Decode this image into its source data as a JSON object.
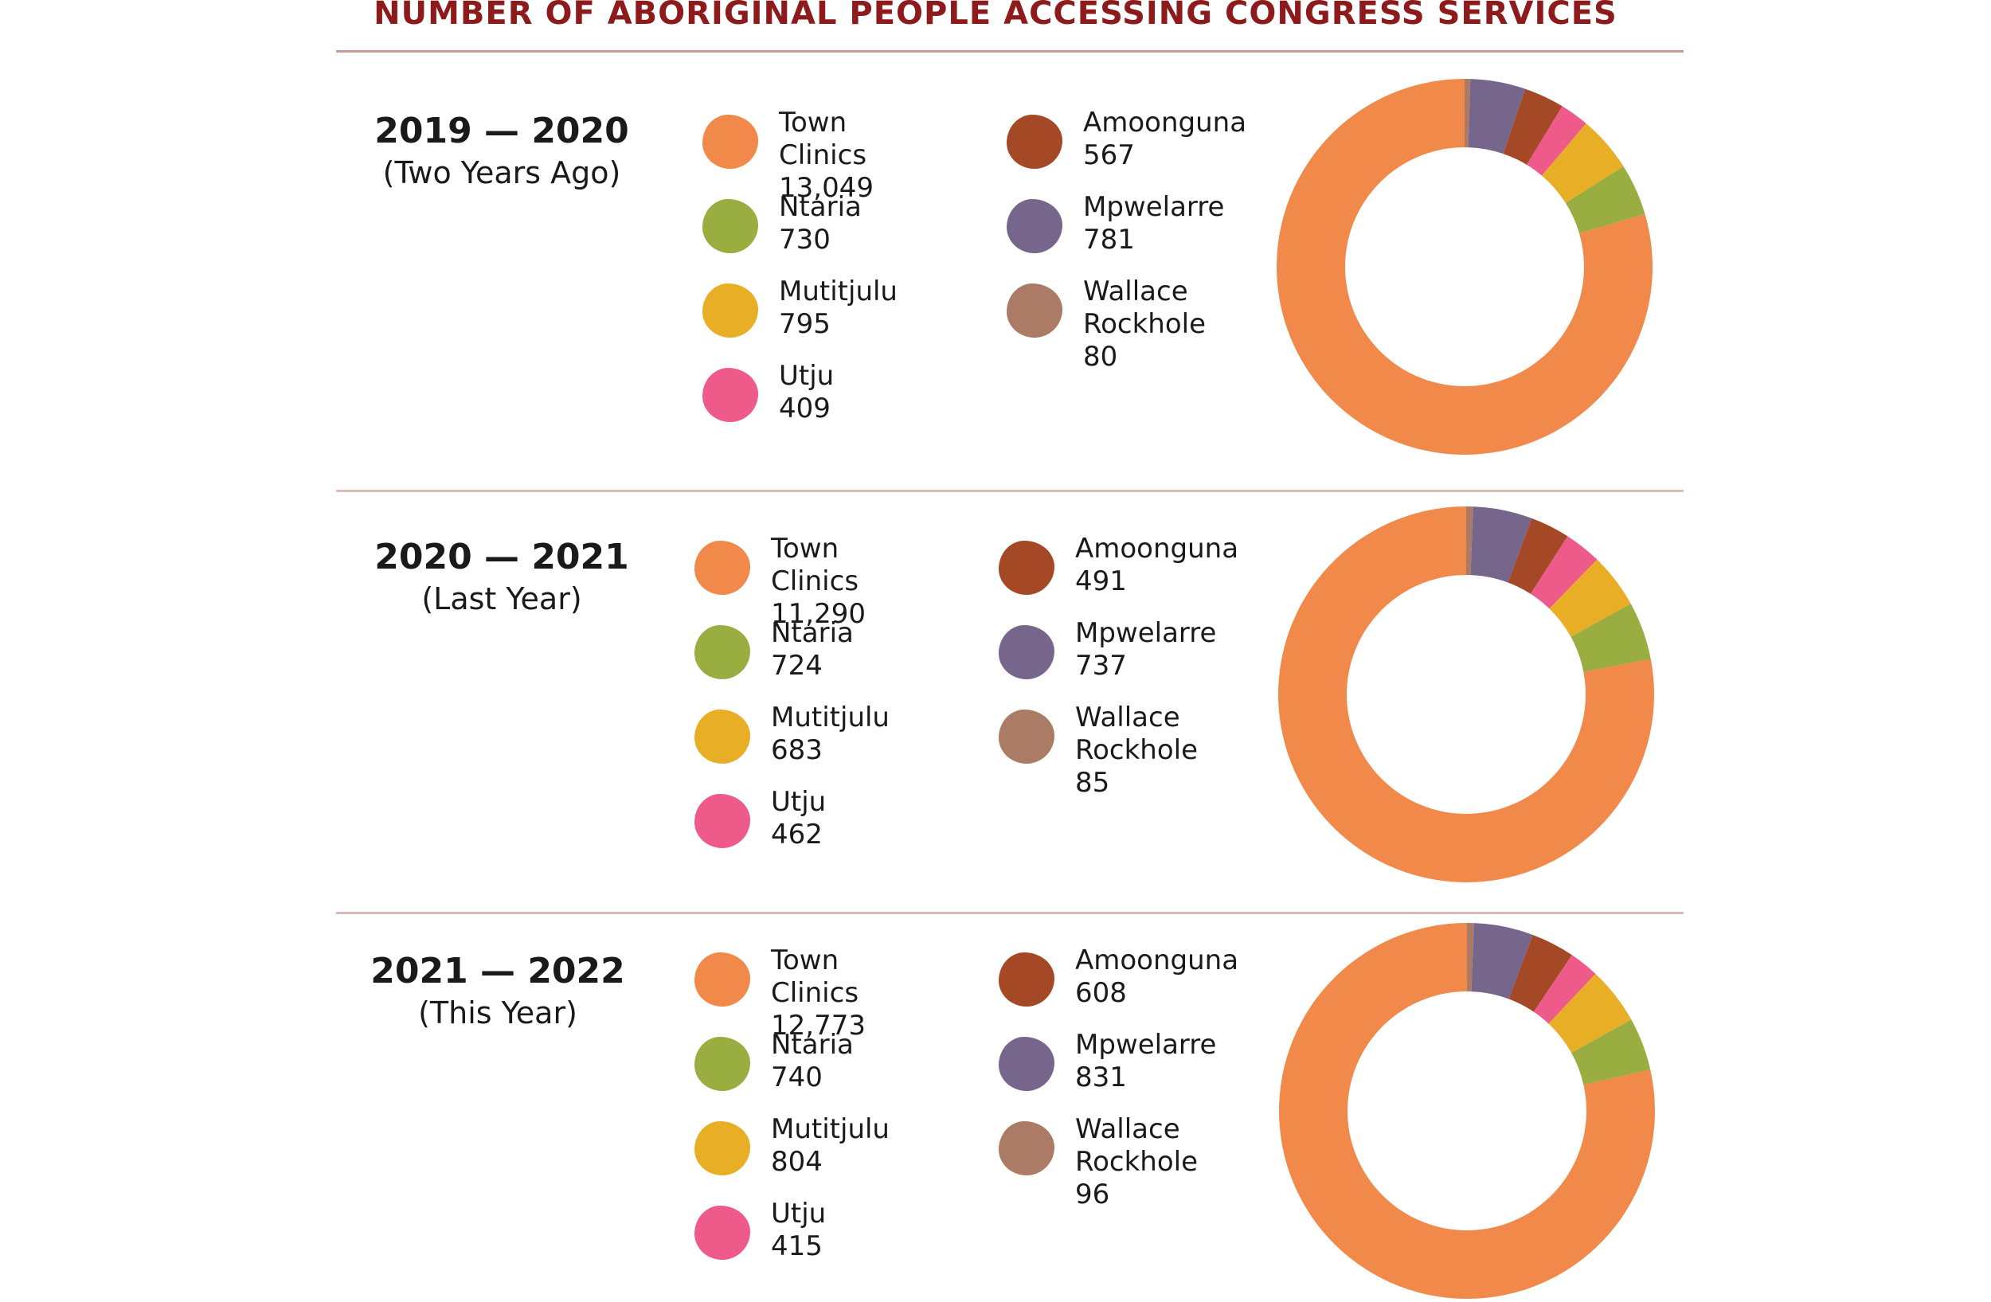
{
  "title": "NUMBER OF ABORIGINAL PEOPLE ACCESSING CONGRESS SERVICES",
  "colors": {
    "Town Clinics": "#f0894a",
    "Ntaria": "#9aad40",
    "Mutitjulu": "#e8ae25",
    "Utju": "#ee5b8a",
    "Amoonguna": "#a54826",
    "Mpwelarre": "#77668c",
    "Wallace Rockhole": "#ab7b66"
  },
  "chart_data": [
    {
      "type": "pie",
      "year": "2019 — 2020",
      "subtitle": "(Two Years Ago)",
      "categories": [
        "Town Clinics",
        "Ntaria",
        "Mutitjulu",
        "Utju",
        "Amoonguna",
        "Mpwelarre",
        "Wallace Rockhole"
      ],
      "labels": [
        "Town Clinics",
        "Ntaria",
        "Mutitjulu",
        "Utju",
        "Amoonguna",
        "Mpwelarre",
        "Wallace Rockhole"
      ],
      "values": [
        13049,
        730,
        795,
        409,
        567,
        781,
        80
      ],
      "display_values": [
        "13,049",
        "730",
        "795",
        "409",
        "567",
        "781",
        "80"
      ]
    },
    {
      "type": "pie",
      "year": "2020 — 2021",
      "subtitle": "(Last Year)",
      "categories": [
        "Town Clinics",
        "Ntaria",
        "Mutitjulu",
        "Utju",
        "Amoonguna",
        "Mpwelarre",
        "Wallace Rockhole"
      ],
      "labels": [
        "Town Clinics",
        "Ntaria",
        "Mutitjulu",
        "Utju",
        "Amoonguna",
        "Mpwelarre",
        "Wallace Rockhole"
      ],
      "values": [
        11290,
        724,
        683,
        462,
        491,
        737,
        85
      ],
      "display_values": [
        "11,290",
        "724",
        "683",
        "462",
        "491",
        "737",
        "85"
      ]
    },
    {
      "type": "pie",
      "year": "2021 — 2022",
      "subtitle": "(This Year)",
      "categories": [
        "Town Clinics",
        "Ntaria",
        "Mutitjulu",
        "Utju",
        "Amoonguna",
        "Mpwelarre",
        "Wallace Rockhole"
      ],
      "labels": [
        "Town Clinics",
        "Ntaria",
        "Mutitjulu",
        "Utju",
        "Amoonguna",
        "Mpwelarre",
        "Wallace Rockhole"
      ],
      "values": [
        12773,
        740,
        804,
        415,
        608,
        831,
        96
      ],
      "display_values": [
        "12,773",
        "740",
        "804",
        "415",
        "608",
        "831",
        "96"
      ]
    }
  ]
}
